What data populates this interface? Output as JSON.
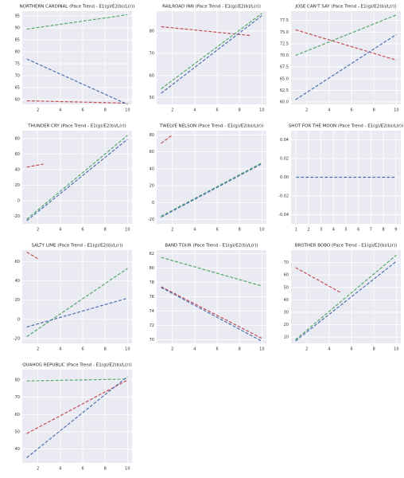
{
  "chart_data": [
    {
      "type": "line",
      "title": "NORTHERN CARDINAL (Pace Trend - E1(g)/E2(b)/L(r))",
      "xlim": [
        0.6,
        10.4
      ],
      "xticks": [
        2,
        4,
        6,
        8,
        10
      ],
      "ylim": [
        58,
        97
      ],
      "yticks": [
        60,
        65,
        70,
        75,
        80,
        85,
        90,
        95
      ],
      "grid": true,
      "series": [
        {
          "color": "#c44e52",
          "x": [
            1,
            10
          ],
          "values": [
            59.5,
            58.5
          ]
        },
        {
          "color": "#55a868",
          "x": [
            1,
            10
          ],
          "values": [
            89.5,
            95.5
          ]
        },
        {
          "color": "#4c72b0",
          "x": [
            1,
            10
          ],
          "values": [
            77,
            58
          ]
        }
      ]
    },
    {
      "type": "line",
      "title": "RAILROAD INN (Pace Trend - E1(g)/E2(b)/L(r))",
      "xlim": [
        0.6,
        10.4
      ],
      "xticks": [
        2,
        4,
        6,
        8,
        10
      ],
      "ylim": [
        47,
        89
      ],
      "yticks": [
        50,
        60,
        70,
        80
      ],
      "grid": true,
      "series": [
        {
          "color": "#c44e52",
          "x": [
            1,
            9
          ],
          "values": [
            82,
            78
          ]
        },
        {
          "color": "#55a868",
          "x": [
            1,
            10
          ],
          "values": [
            54,
            88
          ]
        },
        {
          "color": "#4c72b0",
          "x": [
            1,
            10
          ],
          "values": [
            52,
            87
          ]
        }
      ]
    },
    {
      "type": "line",
      "title": "JOSE CAN'T SAY (Pace Trend - E1(g)/E2(b)/L(r))",
      "xlim": [
        0.6,
        10.4
      ],
      "xticks": [
        2,
        4,
        6,
        8,
        10
      ],
      "ylim": [
        59.5,
        79.5
      ],
      "yticks": [
        {
          "value": 60,
          "label": "60.0"
        },
        62.5,
        {
          "value": 65,
          "label": "65.0"
        },
        67.5,
        {
          "value": 70,
          "label": "70.0"
        },
        72.5,
        {
          "value": 75,
          "label": "75.0"
        },
        77.5
      ],
      "grid": true,
      "series": [
        {
          "color": "#c44e52",
          "x": [
            1,
            10
          ],
          "values": [
            75.5,
            69
          ]
        },
        {
          "color": "#55a868",
          "x": [
            1,
            10
          ],
          "values": [
            70,
            78.7
          ]
        },
        {
          "color": "#4c72b0",
          "x": [
            1,
            10
          ],
          "values": [
            60.5,
            74.5
          ]
        }
      ]
    },
    {
      "type": "line",
      "title": "THUNDER CRY (Pace Trend - E1(g)/E2(b)/L(r))",
      "xlim": [
        0.6,
        10.4
      ],
      "xticks": [
        2,
        4,
        6,
        8,
        10
      ],
      "ylim": [
        -30,
        90
      ],
      "yticks": [
        -20,
        0,
        20,
        40,
        60,
        80
      ],
      "grid": true,
      "series": [
        {
          "color": "#c44e52",
          "x": [
            1,
            2.5
          ],
          "values": [
            43,
            47
          ]
        },
        {
          "color": "#55a868",
          "x": [
            1,
            10
          ],
          "values": [
            -24,
            84
          ]
        },
        {
          "color": "#4c72b0",
          "x": [
            1,
            10
          ],
          "values": [
            -26,
            79
          ]
        }
      ]
    },
    {
      "type": "line",
      "title": "TWELVE NELSON (Pace Trend - E1(g)/E2(b)/L(r))",
      "xlim": [
        0.6,
        10.4
      ],
      "xticks": [
        2,
        4,
        6,
        8,
        10
      ],
      "ylim": [
        -25,
        85
      ],
      "yticks": [
        -20,
        0,
        20,
        40,
        60,
        80
      ],
      "grid": true,
      "series": [
        {
          "color": "#c44e52",
          "x": [
            1,
            2
          ],
          "values": [
            70,
            80
          ]
        },
        {
          "color": "#55a868",
          "x": [
            1,
            10
          ],
          "values": [
            -16,
            47
          ]
        },
        {
          "color": "#4c72b0",
          "x": [
            1,
            10
          ],
          "values": [
            -17,
            46
          ]
        }
      ]
    },
    {
      "type": "line",
      "title": "SHOT FOR THE MOON (Pace Trend - E1(g)/E2(b)/L(r))",
      "xlim": [
        0.6,
        9.4
      ],
      "xticks": [
        1,
        2,
        3,
        4,
        5,
        6,
        7,
        8,
        9
      ],
      "ylim": [
        -0.05,
        0.05
      ],
      "yticks": [
        {
          "value": -0.04,
          "label": "-0.04"
        },
        {
          "value": -0.02,
          "label": "-0.02"
        },
        {
          "value": 0,
          "label": "0.00"
        },
        0.02,
        0.04
      ],
      "grid": true,
      "series": [
        {
          "color": "#4c72b0",
          "x": [
            1,
            9
          ],
          "values": [
            0,
            0
          ]
        }
      ]
    },
    {
      "type": "line",
      "title": "SALTY LIME (Pace Trend - E1(g)/E2(b)/L(r))",
      "xlim": [
        0.6,
        10.4
      ],
      "xticks": [
        2,
        4,
        6,
        8,
        10
      ],
      "ylim": [
        -25,
        72
      ],
      "yticks": [
        -20,
        0,
        20,
        40,
        60
      ],
      "grid": true,
      "series": [
        {
          "color": "#c44e52",
          "x": [
            1,
            2
          ],
          "values": [
            70,
            63
          ]
        },
        {
          "color": "#55a868",
          "x": [
            1,
            10
          ],
          "values": [
            -18,
            53
          ]
        },
        {
          "color": "#4c72b0",
          "x": [
            1,
            10
          ],
          "values": [
            -8,
            22
          ]
        }
      ]
    },
    {
      "type": "line",
      "title": "BAND TOUR (Pace Trend - E1(g)/E2(b)/L(r))",
      "xlim": [
        0.6,
        10.4
      ],
      "xticks": [
        2,
        4,
        6,
        8,
        10
      ],
      "ylim": [
        69.5,
        82.5
      ],
      "yticks": [
        70,
        72,
        74,
        76,
        78,
        80,
        82
      ],
      "grid": true,
      "series": [
        {
          "color": "#c44e52",
          "x": [
            1,
            10
          ],
          "values": [
            77.4,
            70.2
          ]
        },
        {
          "color": "#55a868",
          "x": [
            1,
            10
          ],
          "values": [
            81.5,
            77.5
          ]
        },
        {
          "color": "#4c72b0",
          "x": [
            1,
            10
          ],
          "values": [
            77.3,
            69.8
          ]
        }
      ]
    },
    {
      "type": "line",
      "title": "BROTHER BOBO (Pace Trend - E1(g)/E2(b)/L(r))",
      "xlim": [
        0.6,
        10.4
      ],
      "xticks": [
        2,
        4,
        6,
        8,
        10
      ],
      "ylim": [
        5,
        80
      ],
      "yticks": [
        10,
        20,
        30,
        40,
        50,
        60,
        70
      ],
      "grid": true,
      "series": [
        {
          "color": "#c44e52",
          "x": [
            1,
            5
          ],
          "values": [
            66,
            46
          ]
        },
        {
          "color": "#55a868",
          "x": [
            1,
            10
          ],
          "values": [
            8,
            76
          ]
        },
        {
          "color": "#4c72b0",
          "x": [
            1,
            10
          ],
          "values": [
            7,
            71
          ]
        }
      ]
    },
    {
      "type": "line",
      "title": "QUAHOG REPUBLIC (Pace Trend - E1(g)/E2(b)/L(r))",
      "xlim": [
        0.6,
        10.4
      ],
      "xticks": [
        2,
        4,
        6,
        8,
        10
      ],
      "ylim": [
        32,
        86
      ],
      "yticks": [
        40,
        50,
        60,
        70,
        80
      ],
      "grid": true,
      "series": [
        {
          "color": "#c44e52",
          "x": [
            1,
            10
          ],
          "values": [
            49,
            80
          ]
        },
        {
          "color": "#55a868",
          "x": [
            1,
            10
          ],
          "values": [
            79.5,
            80.5
          ]
        },
        {
          "color": "#4c72b0",
          "x": [
            1,
            10
          ],
          "values": [
            35,
            82
          ]
        }
      ]
    }
  ]
}
